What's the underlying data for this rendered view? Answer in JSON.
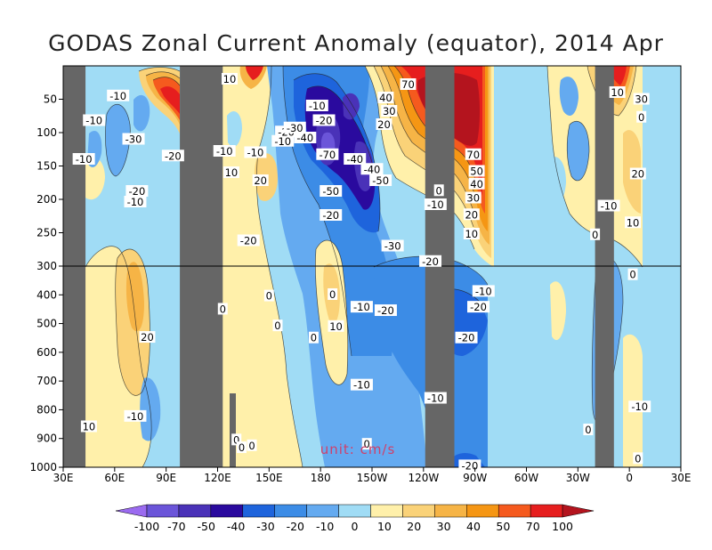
{
  "chart_data": {
    "type": "heatmap",
    "title": "GODAS Zonal Current Anomaly (equator), 2014 Apr",
    "unit_label": "unit: cm/s",
    "x_ticks": [
      "30E",
      "60E",
      "90E",
      "120E",
      "150E",
      "180",
      "150W",
      "120W",
      "90W",
      "60W",
      "30W",
      "0",
      "30E"
    ],
    "y_ticks": [
      "50",
      "100",
      "150",
      "200",
      "250",
      "300",
      "400",
      "500",
      "600",
      "700",
      "800",
      "900",
      "1000"
    ],
    "y_scale": "piecewise-linear (0-300 m stretched, 300-1000 m compressed), depth increasing downward",
    "x_range": [
      "30E",
      "30E (390)"
    ],
    "y_range": [
      0,
      1000
    ],
    "land_mask_color": "#666666",
    "land_mask_longitudes": [
      [
        30,
        43
      ],
      [
        98,
        123
      ],
      [
        241,
        258
      ],
      [
        340,
        351
      ]
    ],
    "contour_levels": [
      -100,
      -70,
      -50,
      -40,
      -30,
      -20,
      -10,
      0,
      10,
      20,
      30,
      40,
      50,
      70,
      100
    ],
    "colorbar": {
      "labels": [
        "-100",
        "-70",
        "-50",
        "-40",
        "-30",
        "-20",
        "-10",
        "0",
        "10",
        "20",
        "30",
        "40",
        "50",
        "70",
        "100"
      ],
      "colors": [
        "#9b6bf0",
        "#6b55d9",
        "#4a32b8",
        "#2a0a9e",
        "#1e64dc",
        "#3c8ce6",
        "#64aaf0",
        "#a0dcf5",
        "#fff0aa",
        "#fad278",
        "#f6b446",
        "#f59614",
        "#f55a1e",
        "#e61e1e",
        "#b4141e"
      ]
    },
    "contour_labels": [
      {
        "lon": 62,
        "d": 45,
        "v": "-10"
      },
      {
        "lon": 48,
        "d": 82,
        "v": "-10"
      },
      {
        "lon": 42,
        "d": 140,
        "v": "-10"
      },
      {
        "lon": 71,
        "d": 110,
        "v": "-30"
      },
      {
        "lon": 94,
        "d": 135,
        "v": "-20"
      },
      {
        "lon": 73,
        "d": 188,
        "v": "-20"
      },
      {
        "lon": 72,
        "d": 204,
        "v": "-10"
      },
      {
        "lon": 127,
        "d": 20,
        "v": "10"
      },
      {
        "lon": 124,
        "d": 128,
        "v": "-10"
      },
      {
        "lon": 128,
        "d": 160,
        "v": "10"
      },
      {
        "lon": 145,
        "d": 172,
        "v": "20"
      },
      {
        "lon": 142,
        "d": 130,
        "v": "-10"
      },
      {
        "lon": 158,
        "d": 113,
        "v": "-10"
      },
      {
        "lon": 160,
        "d": 99,
        "v": "-20"
      },
      {
        "lon": 165,
        "d": 93,
        "v": "-30"
      },
      {
        "lon": 171,
        "d": 108,
        "v": "-40"
      },
      {
        "lon": 178,
        "d": 60,
        "v": "-10"
      },
      {
        "lon": 182,
        "d": 82,
        "v": "-20"
      },
      {
        "lon": 184,
        "d": 133,
        "v": "-70"
      },
      {
        "lon": 200,
        "d": 140,
        "v": "-40"
      },
      {
        "lon": 210,
        "d": 155,
        "v": "-40"
      },
      {
        "lon": 215,
        "d": 172,
        "v": "-50"
      },
      {
        "lon": 186,
        "d": 188,
        "v": "-50"
      },
      {
        "lon": 186,
        "d": 224,
        "v": "-20"
      },
      {
        "lon": 138,
        "d": 262,
        "v": "-20"
      },
      {
        "lon": 218,
        "d": 48,
        "v": "40"
      },
      {
        "lon": 220,
        "d": 68,
        "v": "30"
      },
      {
        "lon": 217,
        "d": 88,
        "v": "20"
      },
      {
        "lon": 231,
        "d": 28,
        "v": "70"
      },
      {
        "lon": 269,
        "d": 133,
        "v": "70"
      },
      {
        "lon": 271,
        "d": 158,
        "v": "50"
      },
      {
        "lon": 271,
        "d": 177,
        "v": "40"
      },
      {
        "lon": 269,
        "d": 198,
        "v": "30"
      },
      {
        "lon": 268,
        "d": 223,
        "v": "20"
      },
      {
        "lon": 268,
        "d": 252,
        "v": "10"
      },
      {
        "lon": 249,
        "d": 187,
        "v": "0"
      },
      {
        "lon": 247,
        "d": 208,
        "v": "-10"
      },
      {
        "lon": 222,
        "d": 270,
        "v": "-30"
      },
      {
        "lon": 244,
        "d": 293,
        "v": "-20"
      },
      {
        "lon": 275,
        "d": 388,
        "v": "-10"
      },
      {
        "lon": 272,
        "d": 443,
        "v": "-20"
      },
      {
        "lon": 204,
        "d": 443,
        "v": "-10"
      },
      {
        "lon": 218,
        "d": 455,
        "v": "-20"
      },
      {
        "lon": 265,
        "d": 550,
        "v": "-20"
      },
      {
        "lon": 204,
        "d": 714,
        "v": "-10"
      },
      {
        "lon": 247,
        "d": 760,
        "v": "-10"
      },
      {
        "lon": 267,
        "d": 995,
        "v": "-20"
      },
      {
        "lon": 79,
        "d": 548,
        "v": "20"
      },
      {
        "lon": 45,
        "d": 859,
        "v": "10"
      },
      {
        "lon": 72,
        "d": 823,
        "v": "-10"
      },
      {
        "lon": 189,
        "d": 510,
        "v": "10"
      },
      {
        "lon": 176,
        "d": 550,
        "v": "0"
      },
      {
        "lon": 150,
        "d": 404,
        "v": "0"
      },
      {
        "lon": 155,
        "d": 508,
        "v": "0"
      },
      {
        "lon": 123,
        "d": 450,
        "v": "0"
      },
      {
        "lon": 187,
        "d": 399,
        "v": "0"
      },
      {
        "lon": 131,
        "d": 905,
        "v": "0"
      },
      {
        "lon": 134,
        "d": 932,
        "v": "0"
      },
      {
        "lon": 140,
        "d": 925,
        "v": "0"
      },
      {
        "lon": 207,
        "d": 920,
        "v": "0"
      },
      {
        "lon": 353,
        "d": 40,
        "v": "10"
      },
      {
        "lon": 367,
        "d": 50,
        "v": "30"
      },
      {
        "lon": 367,
        "d": 77,
        "v": "0"
      },
      {
        "lon": 348,
        "d": 210,
        "v": "-10"
      },
      {
        "lon": 365,
        "d": 162,
        "v": "20"
      },
      {
        "lon": 362,
        "d": 235,
        "v": "10"
      },
      {
        "lon": 340,
        "d": 253,
        "v": "0"
      },
      {
        "lon": 362,
        "d": 330,
        "v": "0"
      },
      {
        "lon": 366,
        "d": 790,
        "v": "-10"
      },
      {
        "lon": 336,
        "d": 870,
        "v": "0"
      },
      {
        "lon": 365,
        "d": 970,
        "v": "0"
      }
    ]
  }
}
